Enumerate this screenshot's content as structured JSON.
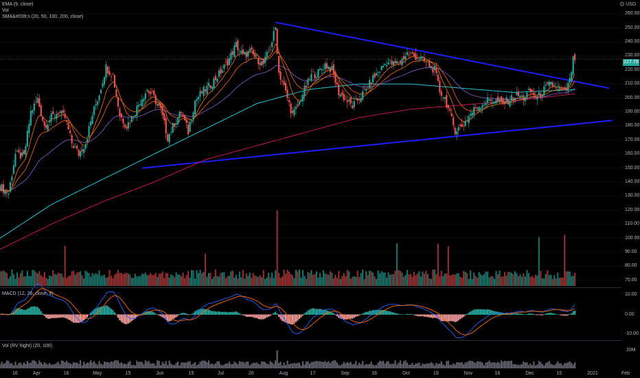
{
  "legend": {
    "ema": "EMA (9, close)",
    "vol": "Vol",
    "sma": "SMA&#039;s (20, 50, 100, 200, close)",
    "macd": "MACD (12, 26, close, 9)",
    "rvol": "Vol (RV hight) (20, 100)"
  },
  "currency": "USD",
  "gear_icon": "gear-icon",
  "last_price_label": "227.78",
  "colors": {
    "bg": "#000000",
    "up": "#26a69a",
    "down": "#ef5350",
    "trendline": "#1d1dff",
    "ema": "#f57c00",
    "sma20": "#ff6f00",
    "sma50": "#7e57c2",
    "sma100": "#26c6da",
    "sma200": "#c2185b",
    "macd_line": "#2962ff",
    "signal_line": "#ff6d00"
  },
  "chart_data": {
    "type": "candlestick",
    "price_axis": {
      "ticks": [
        260,
        250,
        240,
        230,
        220,
        210,
        200,
        190,
        180,
        170,
        160,
        150,
        140,
        130,
        120,
        110,
        100,
        90,
        80,
        70
      ],
      "tick_labels": [
        "260.00",
        "250.00",
        "240.00",
        "230.00",
        "220.00",
        "210.00",
        "200.00",
        "190.00",
        "180.00",
        "170.00",
        "160.00",
        "150.00",
        "140.00",
        "130.00",
        "120.00",
        "110.00",
        "100.00",
        "90.00",
        "80.00",
        "70.00"
      ],
      "range": [
        65,
        265
      ]
    },
    "macd_axis": {
      "tick_labels": [
        "10.00",
        "0.00",
        "-10.00"
      ],
      "ticks": [
        10,
        0,
        -10
      ],
      "range": [
        -13,
        13
      ]
    },
    "vol_axis": {
      "tick_labels": [
        "20M"
      ],
      "ticks": [
        20
      ]
    },
    "time_axis": {
      "labels": [
        "16",
        "Apr",
        "16",
        "May",
        "15",
        "Jun",
        "15",
        "Jul",
        "20",
        "Aug",
        "17",
        "Sep",
        "16",
        "Oct",
        "19",
        "Nov",
        "16",
        "Dec",
        "15",
        "2021",
        "Feb"
      ],
      "positions": [
        0,
        12,
        30,
        47,
        66,
        84,
        103,
        120,
        138,
        156,
        174,
        192,
        210,
        228,
        246,
        264,
        282,
        300,
        318,
        336,
        356
      ]
    },
    "last_price": 227.78,
    "trendlines": [
      {
        "name": "upper",
        "from": [
          161,
          254
        ],
        "to": [
          356,
          207
        ]
      },
      {
        "name": "lower",
        "from": [
          83,
          150
        ],
        "to": [
          358,
          184
        ]
      }
    ],
    "series_anchor": {
      "close": [
        [
          0,
          137
        ],
        [
          5,
          132
        ],
        [
          9,
          160
        ],
        [
          14,
          158
        ],
        [
          18,
          190
        ],
        [
          22,
          199
        ],
        [
          26,
          180
        ],
        [
          30,
          186
        ],
        [
          34,
          190
        ],
        [
          38,
          186
        ],
        [
          42,
          168
        ],
        [
          46,
          160
        ],
        [
          50,
          168
        ],
        [
          54,
          188
        ],
        [
          58,
          203
        ],
        [
          62,
          222
        ],
        [
          66,
          216
        ],
        [
          70,
          188
        ],
        [
          74,
          180
        ],
        [
          78,
          188
        ],
        [
          82,
          198
        ],
        [
          86,
          206
        ],
        [
          90,
          200
        ],
        [
          94,
          191
        ],
        [
          98,
          172
        ],
        [
          102,
          182
        ],
        [
          106,
          190
        ],
        [
          110,
          176
        ],
        [
          114,
          198
        ],
        [
          118,
          204
        ],
        [
          122,
          208
        ],
        [
          126,
          214
        ],
        [
          130,
          220
        ],
        [
          134,
          228
        ],
        [
          138,
          238
        ],
        [
          142,
          230
        ],
        [
          146,
          233
        ],
        [
          150,
          228
        ],
        [
          154,
          224
        ],
        [
          158,
          236
        ],
        [
          161,
          250
        ],
        [
          163,
          218
        ],
        [
          165,
          212
        ],
        [
          168,
          200
        ],
        [
          171,
          188
        ],
        [
          174,
          194
        ],
        [
          178,
          206
        ],
        [
          182,
          216
        ],
        [
          186,
          218
        ],
        [
          190,
          224
        ],
        [
          194,
          220
        ],
        [
          198,
          204
        ],
        [
          202,
          199
        ],
        [
          206,
          194
        ],
        [
          210,
          200
        ],
        [
          214,
          206
        ],
        [
          218,
          214
        ],
        [
          222,
          220
        ],
        [
          226,
          226
        ],
        [
          230,
          224
        ],
        [
          234,
          226
        ],
        [
          238,
          232
        ],
        [
          242,
          230
        ],
        [
          246,
          228
        ],
        [
          250,
          224
        ],
        [
          254,
          220
        ],
        [
          257,
          205
        ],
        [
          260,
          200
        ],
        [
          263,
          188
        ],
        [
          266,
          177
        ],
        [
          270,
          180
        ],
        [
          274,
          187
        ],
        [
          278,
          193
        ],
        [
          282,
          196
        ],
        [
          286,
          199
        ],
        [
          290,
          198
        ],
        [
          294,
          196
        ],
        [
          298,
          199
        ],
        [
          302,
          202
        ],
        [
          306,
          200
        ],
        [
          310,
          205
        ],
        [
          314,
          200
        ],
        [
          318,
          206
        ],
        [
          322,
          210
        ],
        [
          326,
          207
        ],
        [
          330,
          204
        ],
        [
          333,
          212
        ],
        [
          335,
          227
        ],
        [
          336,
          228
        ]
      ],
      "sma200": [
        [
          0,
          92
        ],
        [
          30,
          110
        ],
        [
          60,
          126
        ],
        [
          90,
          140
        ],
        [
          120,
          156
        ],
        [
          150,
          166
        ],
        [
          180,
          176
        ],
        [
          210,
          186
        ],
        [
          240,
          192
        ],
        [
          270,
          195
        ],
        [
          300,
          198
        ],
        [
          336,
          203
        ]
      ],
      "sma100": [
        [
          0,
          100
        ],
        [
          30,
          124
        ],
        [
          60,
          142
        ],
        [
          90,
          160
        ],
        [
          120,
          178
        ],
        [
          150,
          196
        ],
        [
          180,
          206
        ],
        [
          210,
          210
        ],
        [
          240,
          210
        ],
        [
          270,
          207
        ],
        [
          300,
          204
        ],
        [
          336,
          206
        ]
      ]
    }
  }
}
